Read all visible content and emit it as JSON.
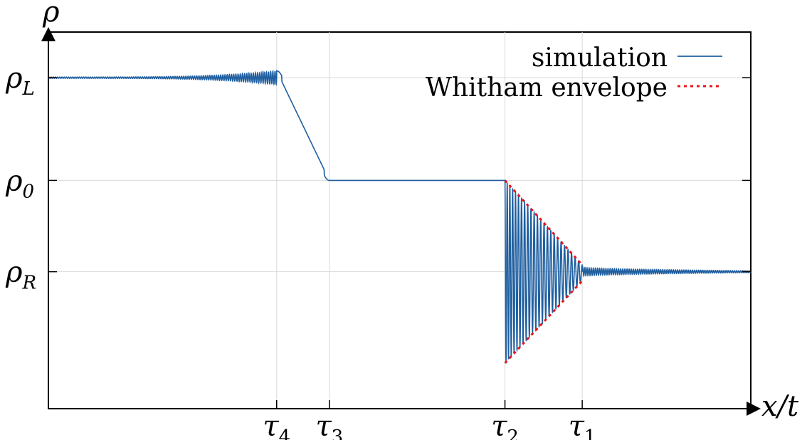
{
  "chart_data": {
    "type": "line",
    "xlabel": "x/t",
    "ylabel": "ρ",
    "xlim": [
      -1.0,
      1.0
    ],
    "ylim": [
      -0.2,
      1.45
    ],
    "grid": true,
    "legend_position": "top-right",
    "x_ticks": [
      {
        "value": -0.35,
        "label": "τ4"
      },
      {
        "value": -0.2,
        "label": "τ3"
      },
      {
        "value": 0.3,
        "label": "τ2"
      },
      {
        "value": 0.52,
        "label": "τ1"
      }
    ],
    "y_ticks": [
      {
        "value": 1.25,
        "label": "ρL"
      },
      {
        "value": 0.8,
        "label": "ρ0"
      },
      {
        "value": 0.4,
        "label": "ρR"
      }
    ],
    "series": [
      {
        "name": "simulation",
        "color": "#1f5fa0",
        "style": "solid",
        "segments": [
          {
            "kind": "oscillating_plateau",
            "x": [
              -1.0,
              -0.35
            ],
            "level": 1.25,
            "note_amplitude": [
              0.003,
              0.03
            ]
          },
          {
            "kind": "rarefaction",
            "x": [
              -0.35,
              -0.2
            ],
            "y": [
              1.28,
              0.8
            ]
          },
          {
            "kind": "constant",
            "x": [
              -0.2,
              0.3
            ],
            "y": 0.8
          },
          {
            "kind": "dispersive_shock",
            "x": [
              0.3,
              0.52
            ],
            "upper": [
              0.8,
              0.43
            ],
            "lower": [
              0.0,
              0.36
            ]
          },
          {
            "kind": "oscillating_plateau",
            "x": [
              0.52,
              1.0
            ],
            "level": 0.4,
            "note_amplitude": [
              0.02,
              0.004
            ]
          }
        ]
      },
      {
        "name": "Whitham envelope",
        "color": "#e8151b",
        "style": "dotted",
        "upper": {
          "x": [
            0.3,
            0.52
          ],
          "y": [
            0.8,
            0.43
          ]
        },
        "lower": {
          "x": [
            0.3,
            0.52
          ],
          "y": [
            0.0,
            0.36
          ]
        }
      }
    ]
  }
}
